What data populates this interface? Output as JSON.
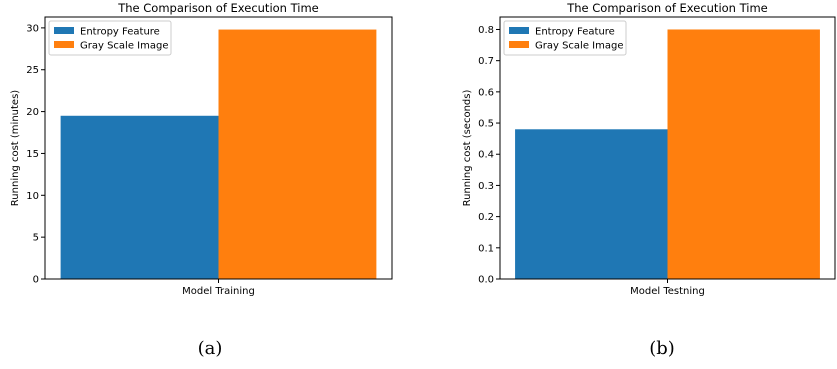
{
  "chart_data": [
    {
      "type": "bar",
      "title": "The Comparison of Execution Time",
      "categories": [
        "Model Training"
      ],
      "series": [
        {
          "name": "Entropy Feature",
          "values": [
            19.5
          ]
        },
        {
          "name": "Gray Scale Image",
          "values": [
            29.8
          ]
        }
      ],
      "xlabel": "",
      "ylabel": "Running cost (minutes)",
      "ylim": [
        0,
        31.3
      ],
      "yticks": [
        0,
        5,
        10,
        15,
        20,
        25,
        30
      ],
      "ytick_labels": [
        "0",
        "5",
        "10",
        "15",
        "20",
        "25",
        "30"
      ],
      "grid": false,
      "legend": "top-left",
      "caption": "(a)"
    },
    {
      "type": "bar",
      "title": "The Comparison of Execution Time",
      "categories": [
        "Model Testning"
      ],
      "series": [
        {
          "name": "Entropy Feature",
          "values": [
            0.48
          ]
        },
        {
          "name": "Gray Scale Image",
          "values": [
            0.8
          ]
        }
      ],
      "xlabel": "",
      "ylabel": "Running cost (seconds)",
      "ylim": [
        0,
        0.84
      ],
      "yticks": [
        0.0,
        0.1,
        0.2,
        0.3,
        0.4,
        0.5,
        0.6,
        0.7,
        0.8
      ],
      "ytick_labels": [
        "0.0",
        "0.1",
        "0.2",
        "0.3",
        "0.4",
        "0.5",
        "0.6",
        "0.7",
        "0.8"
      ],
      "grid": false,
      "legend": "top-left",
      "caption": "(b)"
    }
  ],
  "colors": {
    "series": [
      "#1f77b4",
      "#ff7f0e"
    ],
    "axis": "#000000"
  }
}
